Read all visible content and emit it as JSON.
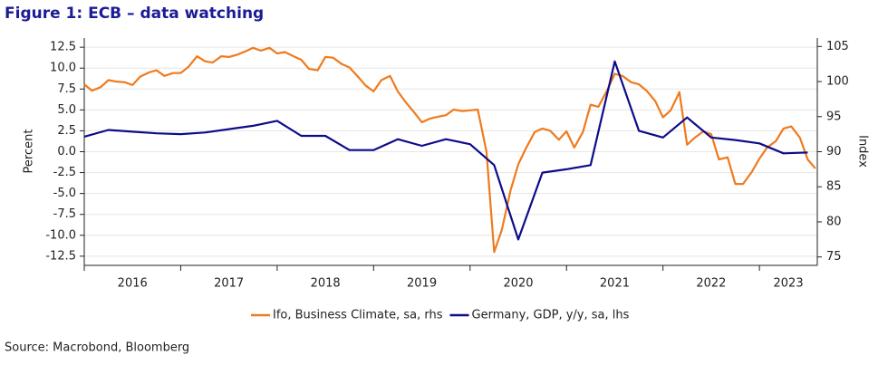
{
  "chart_data": {
    "type": "line",
    "title": "Figure 1: ECB – data watching",
    "ylabel": "Percent",
    "y2label": "Index",
    "source": "Source: Macrobond, Bloomberg",
    "xlim": [
      2016,
      2023.6
    ],
    "xticks": [
      {
        "value": 2016.5,
        "label": "2016"
      },
      {
        "value": 2017.5,
        "label": "2017"
      },
      {
        "value": 2018.5,
        "label": "2018"
      },
      {
        "value": 2019.5,
        "label": "2019"
      },
      {
        "value": 2020.5,
        "label": "2020"
      },
      {
        "value": 2021.5,
        "label": "2021"
      },
      {
        "value": 2022.5,
        "label": "2022"
      },
      {
        "value": 2023.3,
        "label": "2023"
      }
    ],
    "ylim": [
      -13.6,
      13.6
    ],
    "yticks": [
      12.5,
      {
        "value": 10,
        "label": "10.0"
      },
      7.5,
      {
        "value": 5,
        "label": "5.0"
      },
      2.5,
      {
        "value": 0,
        "label": "0.0"
      },
      -2.5,
      {
        "value": -5,
        "label": "-5.0"
      },
      -7.5,
      {
        "value": -10,
        "label": "-10.0"
      },
      -12.5
    ],
    "y2lim": [
      73.8,
      106.2
    ],
    "y2ticks": [
      105,
      100,
      95,
      90,
      85,
      80,
      75
    ],
    "grid": true,
    "legend": "bottom",
    "series": [
      {
        "name": "Ifo, Business Climate, sa, rhs",
        "color": "#f07a1c",
        "axis": "y2",
        "x": [
          2016.0,
          2016.08,
          2016.17,
          2016.25,
          2016.33,
          2016.42,
          2016.5,
          2016.58,
          2016.67,
          2016.75,
          2016.83,
          2016.92,
          2017.0,
          2017.08,
          2017.17,
          2017.25,
          2017.33,
          2017.42,
          2017.5,
          2017.58,
          2017.67,
          2017.75,
          2017.83,
          2017.92,
          2018.0,
          2018.08,
          2018.17,
          2018.25,
          2018.33,
          2018.42,
          2018.5,
          2018.58,
          2018.67,
          2018.75,
          2018.83,
          2018.92,
          2019.0,
          2019.08,
          2019.17,
          2019.25,
          2019.33,
          2019.42,
          2019.5,
          2019.58,
          2019.67,
          2019.75,
          2019.83,
          2019.92,
          2020.0,
          2020.08,
          2020.17,
          2020.25,
          2020.33,
          2020.42,
          2020.5,
          2020.58,
          2020.67,
          2020.75,
          2020.83,
          2020.92,
          2021.0,
          2021.08,
          2021.17,
          2021.25,
          2021.33,
          2021.42,
          2021.5,
          2021.58,
          2021.67,
          2021.75,
          2021.83,
          2021.92,
          2022.0,
          2022.08,
          2022.17,
          2022.25,
          2022.33,
          2022.42,
          2022.5,
          2022.58,
          2022.67,
          2022.75,
          2022.83,
          2022.92,
          2023.0,
          2023.08,
          2023.17,
          2023.25,
          2023.33,
          2023.42,
          2023.5,
          2023.58
        ],
        "values": [
          99.6,
          98.7,
          99.2,
          100.2,
          100.0,
          99.9,
          99.5,
          100.7,
          101.3,
          101.6,
          100.8,
          101.2,
          101.2,
          102.1,
          103.6,
          102.9,
          102.7,
          103.6,
          103.5,
          103.8,
          104.3,
          104.8,
          104.4,
          104.8,
          104.0,
          104.2,
          103.6,
          103.1,
          101.8,
          101.6,
          103.5,
          103.4,
          102.5,
          102.0,
          100.8,
          99.4,
          98.6,
          100.2,
          100.8,
          98.6,
          97.1,
          95.6,
          94.2,
          94.7,
          95.0,
          95.2,
          96.0,
          95.8,
          95.9,
          96.0,
          90.0,
          75.7,
          78.9,
          84.5,
          88.2,
          90.5,
          92.8,
          93.3,
          93.0,
          91.7,
          92.9,
          90.6,
          92.8,
          96.7,
          96.4,
          98.7,
          101.1,
          100.8,
          99.9,
          99.6,
          98.7,
          97.2,
          94.9,
          95.9,
          98.5,
          91.0,
          92.0,
          92.9,
          92.5,
          88.9,
          89.2,
          85.4,
          85.4,
          87.1,
          89.0,
          90.6,
          91.5,
          93.3,
          93.6,
          92.0,
          88.9,
          87.6
        ]
      },
      {
        "name": "Germany, GDP, y/y, sa, lhs",
        "color": "#0c0c8a",
        "axis": "y",
        "x": [
          2016.0,
          2016.25,
          2016.5,
          2016.75,
          2017.0,
          2017.25,
          2017.5,
          2017.75,
          2018.0,
          2018.25,
          2018.5,
          2018.75,
          2019.0,
          2019.25,
          2019.5,
          2019.75,
          2020.0,
          2020.25,
          2020.5,
          2020.75,
          2021.0,
          2021.25,
          2021.5,
          2021.75,
          2022.0,
          2022.25,
          2022.5,
          2022.75,
          2023.0,
          2023.25,
          2023.5
        ],
        "values": [
          1.8,
          2.6,
          2.4,
          2.2,
          2.1,
          2.3,
          2.7,
          3.1,
          3.7,
          1.9,
          1.9,
          0.2,
          0.2,
          1.5,
          0.7,
          1.5,
          0.9,
          -1.6,
          -10.5,
          -2.5,
          -2.1,
          -1.6,
          10.8,
          2.5,
          1.7,
          4.1,
          1.7,
          1.4,
          1.0,
          -0.2,
          -0.1
        ]
      }
    ]
  }
}
